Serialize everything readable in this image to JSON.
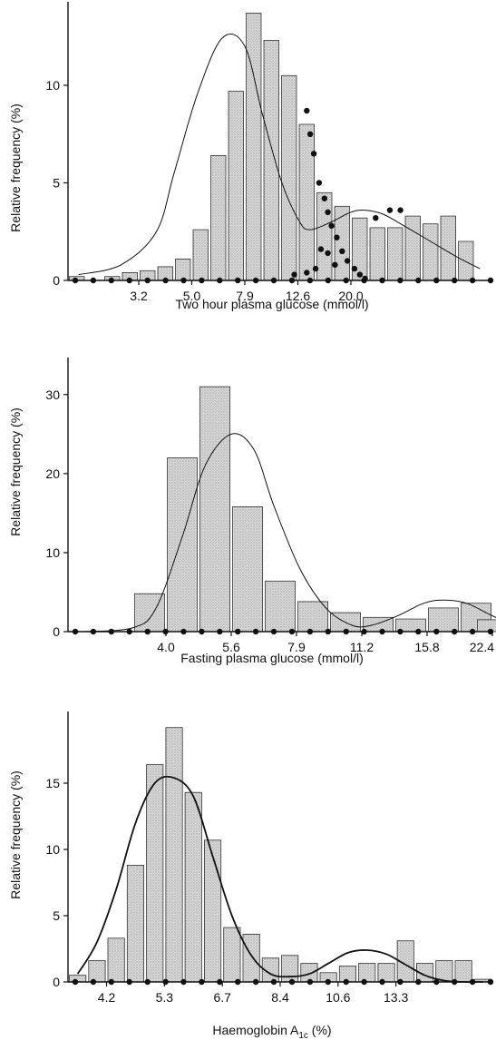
{
  "chart_data": [
    {
      "type": "bar",
      "xlabel": "Two hour plasma glucose (mmol/l)",
      "ylabel": "Relative frequency (%)",
      "ylim": [
        0,
        14
      ],
      "yticks": [
        0,
        5,
        10
      ],
      "xtick_labels": [
        "3.2",
        "5.0",
        "7.9",
        "12.6",
        "20.0"
      ],
      "xtick_bins": [
        4,
        7,
        10,
        13,
        16
      ],
      "bar_color": "#cfcfcf",
      "bins": 24,
      "values": [
        0.2,
        0,
        0.2,
        0.4,
        0.5,
        0.7,
        1.1,
        2.6,
        6.4,
        9.7,
        13.7,
        12.3,
        10.5,
        8.0,
        4.5,
        3.8,
        3.2,
        2.7,
        2.7,
        3.3,
        2.9,
        3.3,
        2.0,
        0
      ],
      "fit_lower": [
        [
          0.1,
          0.3
        ],
        [
          2.5,
          0.8
        ],
        [
          4.5,
          2.5
        ],
        [
          5.5,
          5.5
        ],
        [
          6.8,
          9.5
        ],
        [
          8.2,
          12.4
        ],
        [
          9.5,
          12.0
        ],
        [
          10.5,
          8.5
        ],
        [
          11.6,
          5.0
        ],
        [
          12.6,
          3.0
        ],
        [
          13.2,
          2.6
        ],
        [
          14.4,
          3.0
        ],
        [
          15.5,
          3.5
        ],
        [
          16.3,
          3.6
        ],
        [
          17.3,
          3.4
        ],
        [
          18.5,
          2.8
        ],
        [
          20.0,
          2.0
        ],
        [
          21.5,
          1.2
        ],
        [
          22.8,
          0.6
        ]
      ],
      "fit_upper_dots": [
        [
          13.5,
          8.7
        ],
        [
          13.7,
          7.5
        ],
        [
          13.9,
          6.5
        ],
        [
          14.2,
          5.0
        ],
        [
          14.5,
          4.2
        ],
        [
          14.7,
          3.5
        ],
        [
          14.9,
          2.8
        ],
        [
          15.2,
          2.2
        ],
        [
          15.5,
          1.5
        ],
        [
          15.8,
          1.0
        ],
        [
          16.2,
          0.6
        ],
        [
          16.5,
          0.3
        ],
        [
          16.8,
          0.1
        ],
        [
          17.4,
          3.2
        ],
        [
          18.2,
          3.6
        ],
        [
          18.8,
          3.6
        ],
        [
          14.3,
          1.6
        ],
        [
          14.7,
          1.4
        ],
        [
          15.1,
          0.8
        ],
        [
          14.0,
          0.6
        ],
        [
          13.5,
          0.4
        ],
        [
          12.8,
          0.3
        ]
      ],
      "baseline_dots": 24
    },
    {
      "type": "bar",
      "xlabel": "Fasting plasma glucose (mmol/l)",
      "ylabel": "Relative frequency (%)",
      "ylim": [
        0,
        34
      ],
      "yticks": [
        0,
        10,
        20,
        30
      ],
      "xtick_labels": [
        "4.0",
        "5.6",
        "7.9",
        "11.2",
        "15.8",
        "22.4"
      ],
      "xtick_bins": [
        3,
        5,
        7,
        9,
        11,
        13
      ],
      "bar_color": "#cfcfcf",
      "bins": 13,
      "values": [
        0,
        0,
        4.8,
        22.0,
        31.0,
        15.8,
        6.4,
        3.8,
        2.4,
        1.8,
        1.6,
        3.0,
        3.6
      ],
      "extra_bars": [
        [
          12.5,
          1.5
        ]
      ],
      "fit": [
        [
          0,
          0
        ],
        [
          1.5,
          0.5
        ],
        [
          2.2,
          3.0
        ],
        [
          3.0,
          12.0
        ],
        [
          3.7,
          21.0
        ],
        [
          4.5,
          25.0
        ],
        [
          5.2,
          23.0
        ],
        [
          5.8,
          16.0
        ],
        [
          6.6,
          8.0
        ],
        [
          7.4,
          3.0
        ],
        [
          8.2,
          0.8
        ],
        [
          8.8,
          0.8
        ],
        [
          9.6,
          2.0
        ],
        [
          10.4,
          3.6
        ],
        [
          11.0,
          4.0
        ],
        [
          11.7,
          3.6
        ],
        [
          12.4,
          2.2
        ],
        [
          13.0,
          1.0
        ]
      ],
      "baseline_dots": 24
    },
    {
      "type": "bar",
      "xlabel": "Haemoglobin A",
      "xlabel_sub": "1c",
      "xlabel_suffix": " (%)",
      "ylabel": "Relative frequency (%)",
      "ylim": [
        0,
        20
      ],
      "yticks": [
        0,
        5,
        10,
        15
      ],
      "xtick_labels": [
        "4.2",
        "5.3",
        "6.7",
        "8.4",
        "10.6",
        "13.3"
      ],
      "xtick_bins": [
        2,
        5,
        8,
        11,
        14,
        17
      ],
      "bar_color": "#cfcfcf",
      "bins": 22,
      "values": [
        0.5,
        1.6,
        3.3,
        8.8,
        16.4,
        19.2,
        14.3,
        10.7,
        4.1,
        3.6,
        1.8,
        2.0,
        1.4,
        0.7,
        1.2,
        1.4,
        1.4,
        3.1,
        1.4,
        1.6,
        1.6,
        0.2
      ],
      "fit": [
        [
          0,
          0.6
        ],
        [
          1.0,
          3.0
        ],
        [
          2.0,
          7.0
        ],
        [
          3.0,
          12.0
        ],
        [
          4.0,
          15.0
        ],
        [
          5.0,
          15.4
        ],
        [
          6.0,
          14.0
        ],
        [
          7.0,
          9.5
        ],
        [
          8.0,
          5.0
        ],
        [
          9.0,
          2.0
        ],
        [
          10.0,
          0.6
        ],
        [
          11.0,
          0.4
        ],
        [
          12.0,
          0.6
        ],
        [
          13.0,
          1.4
        ],
        [
          14.0,
          2.2
        ],
        [
          15.0,
          2.4
        ],
        [
          16.0,
          2.1
        ],
        [
          17.0,
          1.3
        ],
        [
          18.0,
          0.5
        ],
        [
          19.0,
          0.1
        ],
        [
          20.0,
          0.0
        ],
        [
          21.0,
          0.0
        ]
      ],
      "baseline_dots": 24
    }
  ]
}
